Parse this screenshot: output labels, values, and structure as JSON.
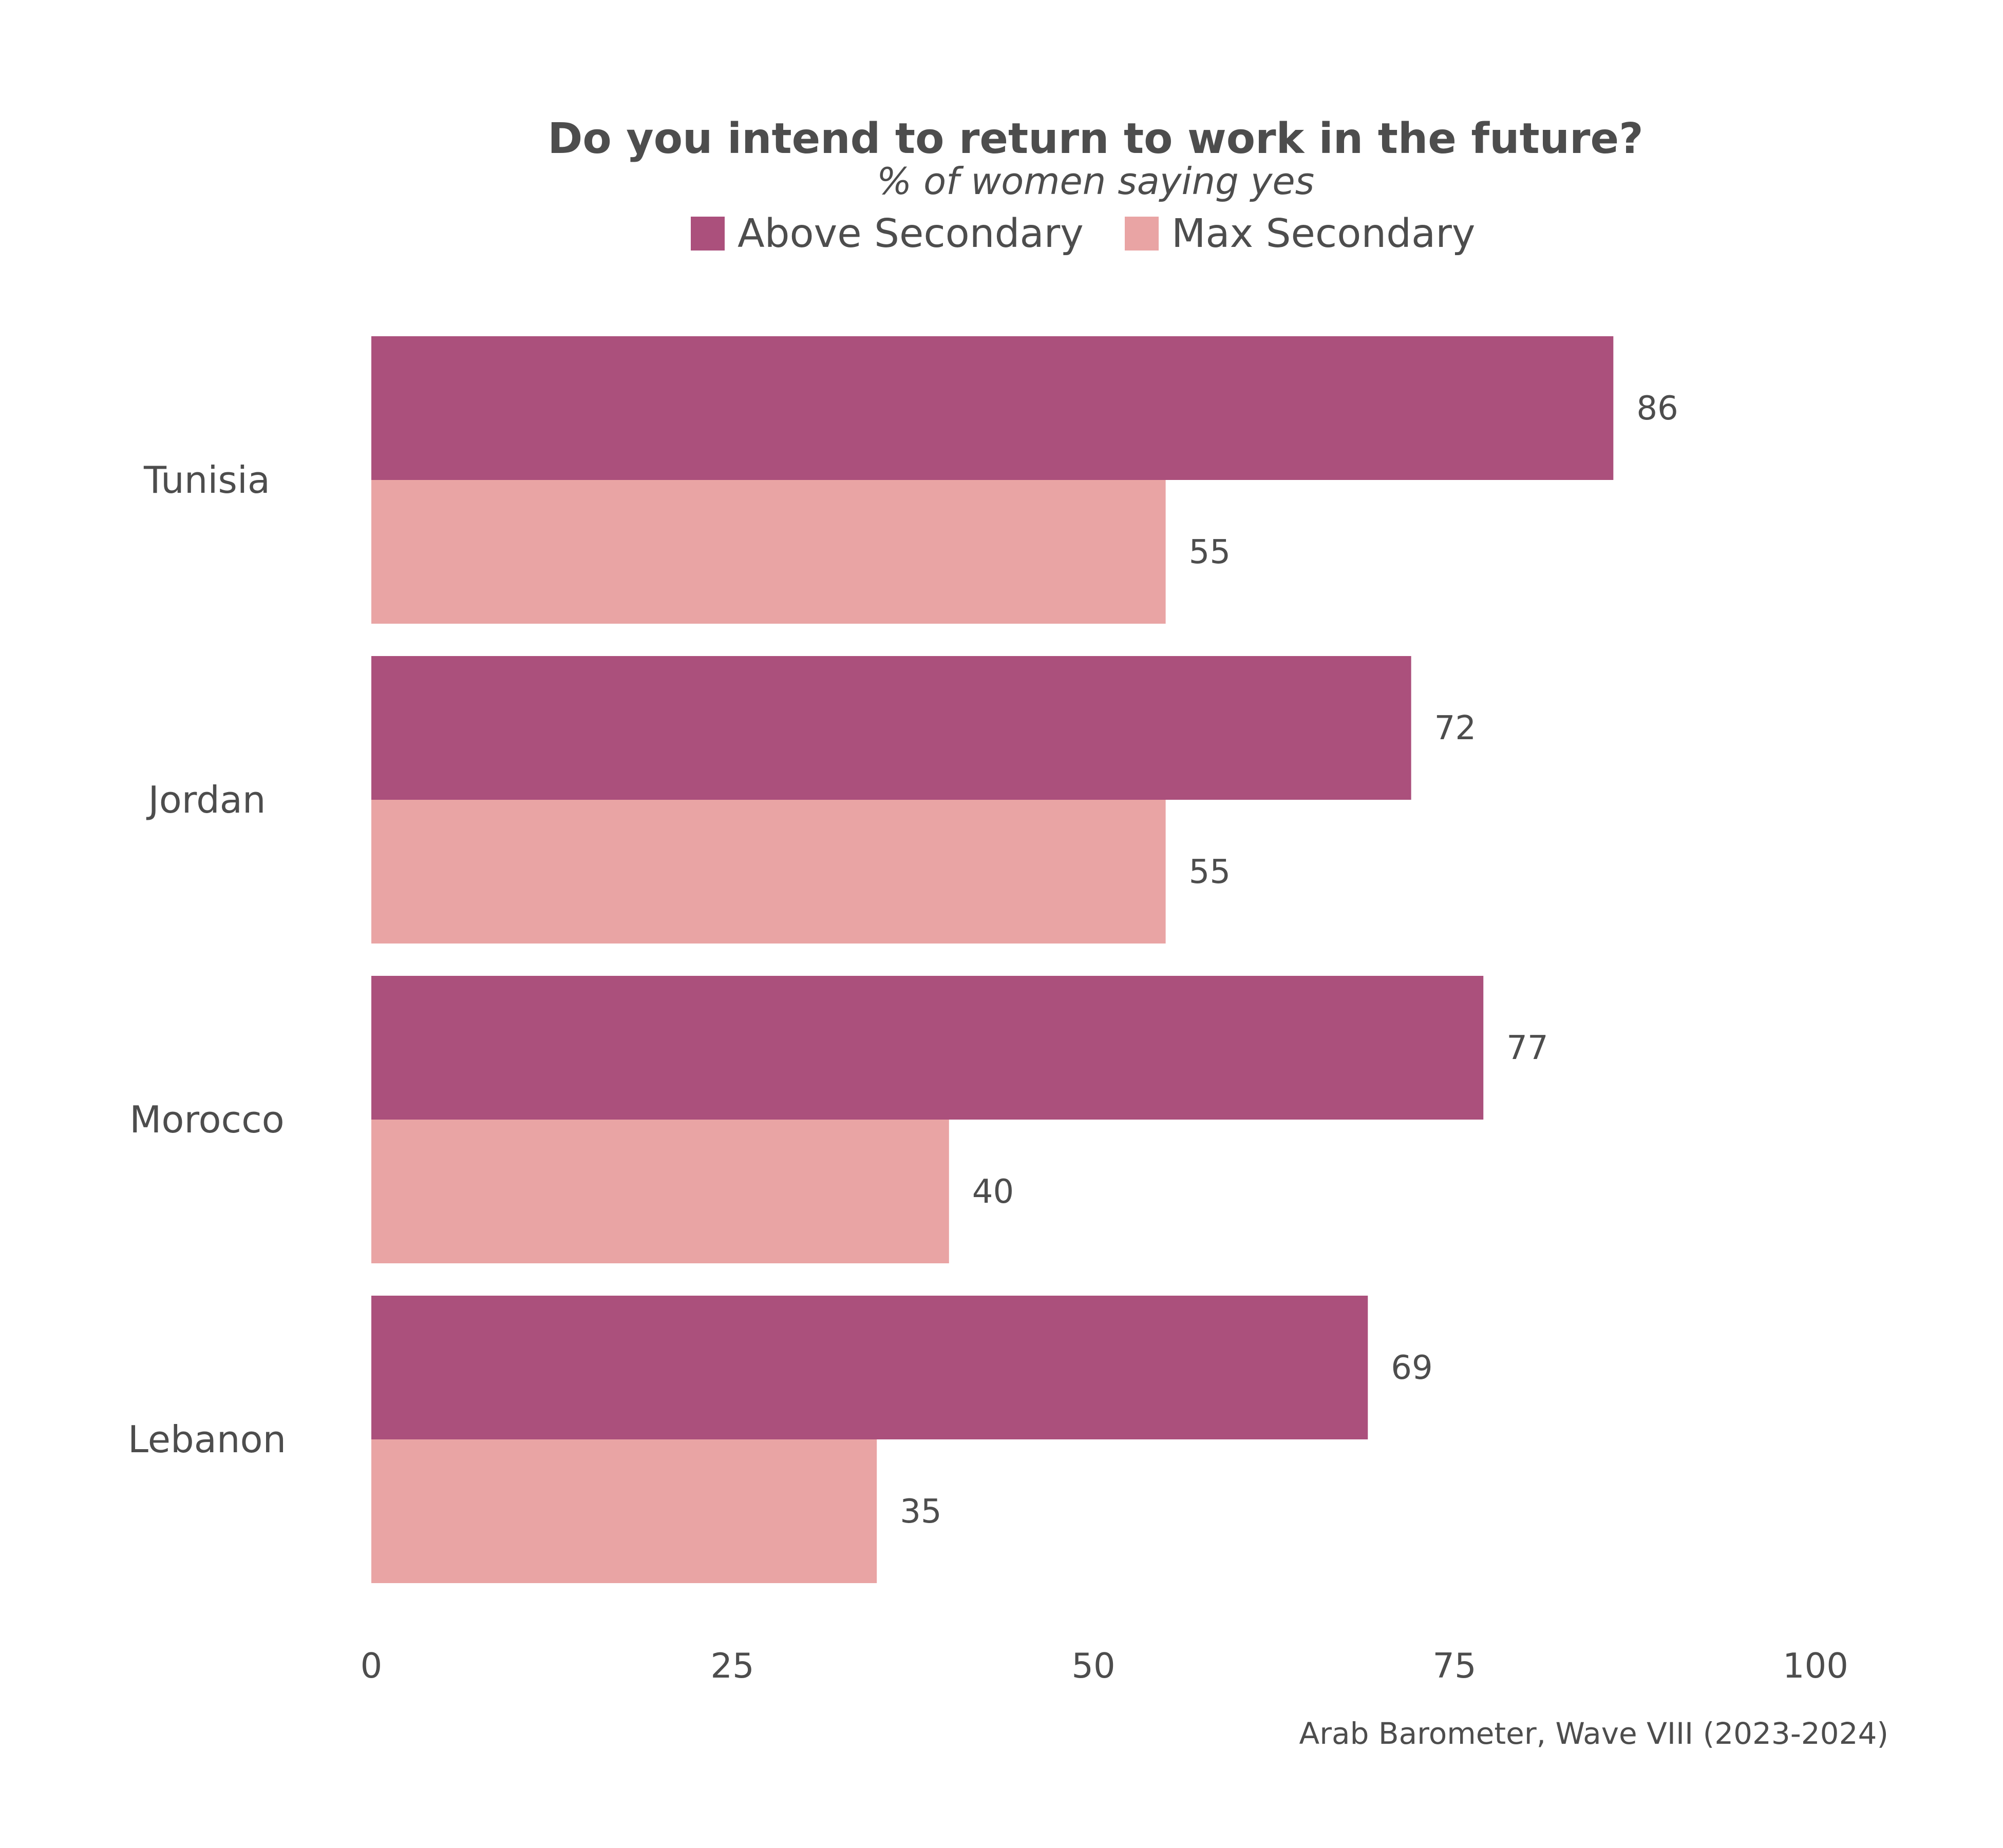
{
  "chart_data": {
    "type": "bar",
    "orientation": "horizontal",
    "title": "Do you intend to return to work in the future?",
    "subtitle": "% of women saying yes",
    "categories": [
      "Tunisia",
      "Jordan",
      "Morocco",
      "Lebanon"
    ],
    "series": [
      {
        "name": "Above Secondary",
        "color": "#ab507c",
        "values": [
          86,
          72,
          77,
          69
        ]
      },
      {
        "name": "Max Secondary",
        "color": "#e9a4a4",
        "values": [
          55,
          55,
          40,
          35
        ]
      }
    ],
    "xlim": [
      0,
      100
    ],
    "xticks": [
      "0",
      "25",
      "50",
      "75",
      "100"
    ],
    "grid": false,
    "legend_position": "top-center",
    "caption": "Arab Barometer, Wave VIII (2023-2024)"
  }
}
